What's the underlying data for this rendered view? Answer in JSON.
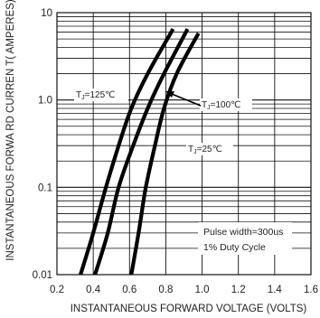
{
  "chart_data": {
    "type": "line",
    "title": "",
    "xlabel": "INSTANTANEOUS FORWARD VOLTAGE (VOLTS)",
    "ylabel": "INSTANTANEOUS FORWA RD CURREN T( AMPERES)",
    "x_scale": "linear",
    "y_scale": "log",
    "xlim": [
      0.2,
      1.6
    ],
    "ylim": [
      0.01,
      10
    ],
    "grid": true,
    "x_ticks": [
      0.2,
      0.4,
      0.6,
      0.8,
      1.0,
      1.2,
      1.4,
      1.6
    ],
    "x_tick_labels": [
      "0.2",
      "0.4",
      "0.6",
      "0.8",
      "1.0",
      "1.2",
      "1.4",
      "1.6"
    ],
    "y_ticks": [
      0.01,
      0.1,
      1,
      10
    ],
    "y_tick_labels": [
      "0.01",
      "0.1",
      "1.0",
      "10"
    ],
    "series": [
      {
        "name": "TJ=125℃",
        "label_main": "T",
        "label_sub": "J",
        "label_rest": "=125℃",
        "points": [
          [
            0.33,
            0.01
          ],
          [
            0.4,
            0.03
          ],
          [
            0.47,
            0.1
          ],
          [
            0.54,
            0.3
          ],
          [
            0.61,
            0.8
          ],
          [
            0.7,
            2.0
          ],
          [
            0.84,
            6.5
          ]
        ]
      },
      {
        "name": "TJ=100℃",
        "label_main": "T",
        "label_sub": "J",
        "label_rest": "=100℃",
        "points": [
          [
            0.41,
            0.01
          ],
          [
            0.48,
            0.03
          ],
          [
            0.54,
            0.1
          ],
          [
            0.62,
            0.3
          ],
          [
            0.7,
            0.8
          ],
          [
            0.79,
            2.0
          ],
          [
            0.92,
            6.5
          ]
        ]
      },
      {
        "name": "TJ=25℃",
        "label_main": "T",
        "label_sub": "J",
        "label_rest": "=25℃",
        "points": [
          [
            0.61,
            0.01
          ],
          [
            0.65,
            0.03
          ],
          [
            0.69,
            0.1
          ],
          [
            0.74,
            0.3
          ],
          [
            0.79,
            0.8
          ],
          [
            0.86,
            2.0
          ],
          [
            0.98,
            5.8
          ]
        ]
      }
    ],
    "annotations": [
      "Pulse width=300us",
      "1% Duty Cycle"
    ]
  }
}
